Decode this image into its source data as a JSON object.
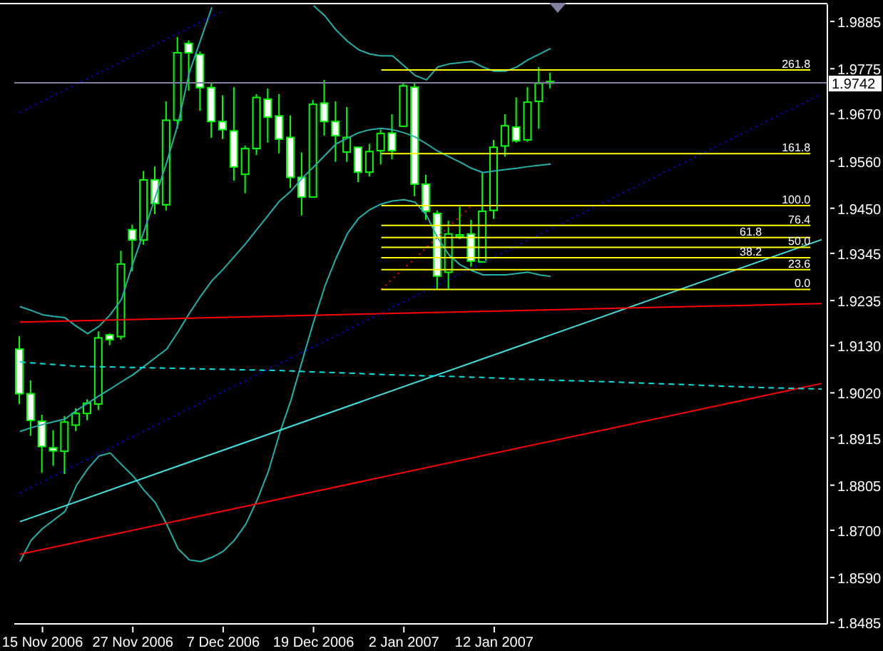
{
  "chart_data": {
    "type": "candlestick",
    "color": "#00ff00",
    "categories": [
      null,
      null,
      "15 Nov 2006",
      null,
      null,
      null,
      null,
      null,
      null,
      null,
      "27 Nov 2006",
      null,
      null,
      null,
      null,
      null,
      null,
      null,
      "7 Dec 2006",
      null,
      null,
      null,
      null,
      null,
      null,
      null,
      "19 Dec 2006",
      null,
      null,
      null,
      null,
      null,
      null,
      null,
      "2 Jan 2007",
      null,
      null,
      null,
      null,
      null,
      null,
      null,
      "12 Jan 2007",
      null,
      null,
      null,
      null,
      null,
      null,
      null,
      null,
      null,
      null,
      null,
      null,
      null,
      null,
      null,
      null,
      null,
      null,
      null,
      null,
      null,
      null,
      null,
      null,
      null,
      null,
      null,
      null,
      null
    ],
    "ohlc": [
      [
        1.9122,
        1.9152,
        1.8994,
        1.9018
      ],
      [
        1.9018,
        1.9049,
        1.892,
        1.8956
      ],
      [
        1.8954,
        1.8969,
        1.8834,
        1.8895
      ],
      [
        1.8892,
        1.8933,
        1.885,
        1.8885
      ],
      [
        1.8884,
        1.8966,
        1.8831,
        1.8952
      ],
      [
        1.8945,
        1.8984,
        1.8931,
        1.8972
      ],
      [
        1.8972,
        1.9005,
        1.8956,
        1.8996
      ],
      [
        1.8994,
        1.9163,
        1.898,
        1.9148
      ],
      [
        1.9155,
        1.9159,
        1.9131,
        1.9144
      ],
      [
        1.9151,
        1.9351,
        1.9144,
        1.932
      ],
      [
        1.94,
        1.9412,
        1.9303,
        1.9376
      ],
      [
        1.9376,
        1.9537,
        1.9365,
        1.9516
      ],
      [
        1.9516,
        1.9547,
        1.9436,
        1.9461
      ],
      [
        1.9458,
        1.9699,
        1.9445,
        1.9655
      ],
      [
        1.9655,
        1.9849,
        1.9635,
        1.9812
      ],
      [
        1.9834,
        1.9841,
        1.9724,
        1.9812
      ],
      [
        1.9808,
        1.9815,
        1.9677,
        1.9731
      ],
      [
        1.9731,
        1.9743,
        1.9614,
        1.9652
      ],
      [
        1.9652,
        1.9713,
        1.9611,
        1.9633
      ],
      [
        1.963,
        1.9732,
        1.9514,
        1.9546
      ],
      [
        1.9529,
        1.9596,
        1.9485,
        1.9589
      ],
      [
        1.9589,
        1.9716,
        1.9574,
        1.9708
      ],
      [
        1.9704,
        1.9729,
        1.9603,
        1.9662
      ],
      [
        1.9665,
        1.9716,
        1.9578,
        1.9611
      ],
      [
        1.9615,
        1.9666,
        1.9497,
        1.9522
      ],
      [
        1.9522,
        1.958,
        1.9433,
        1.9476
      ],
      [
        1.9476,
        1.9702,
        1.9476,
        1.9692
      ],
      [
        1.9695,
        1.9749,
        1.9619,
        1.9652
      ],
      [
        1.9652,
        1.9699,
        1.9558,
        1.9619
      ],
      [
        1.9581,
        1.9686,
        1.9558,
        1.9615
      ],
      [
        1.9592,
        1.9594,
        1.9511,
        1.9534
      ],
      [
        1.9534,
        1.96,
        1.9524,
        1.9582
      ],
      [
        1.9584,
        1.9633,
        1.9552,
        1.9624
      ],
      [
        1.9625,
        1.9669,
        1.9564,
        1.9584
      ],
      [
        1.9641,
        1.9743,
        1.9641,
        1.9735
      ],
      [
        1.9732,
        1.9743,
        1.9478,
        1.9506
      ],
      [
        1.9506,
        1.9528,
        1.9423,
        1.9443
      ],
      [
        1.9438,
        1.9445,
        1.9262,
        1.9292
      ],
      [
        1.9301,
        1.9421,
        1.9262,
        1.939
      ],
      [
        1.9384,
        1.9454,
        1.9378,
        1.9388
      ],
      [
        1.939,
        1.9423,
        1.9314,
        1.9327
      ],
      [
        1.9325,
        1.9533,
        1.9323,
        1.9443
      ],
      [
        1.9445,
        1.9609,
        1.9425,
        1.9592
      ],
      [
        1.9595,
        1.9669,
        1.957,
        1.9642
      ],
      [
        1.9639,
        1.9708,
        1.9603,
        1.9607
      ],
      [
        1.9609,
        1.9732,
        1.9605,
        1.9697
      ],
      [
        1.9699,
        1.9779,
        1.9635,
        1.9741
      ],
      [
        1.9745,
        1.9766,
        1.9729,
        1.9742
      ],
      null,
      null,
      null,
      null,
      null,
      null,
      null,
      null,
      null,
      null,
      null,
      null,
      null,
      null,
      null,
      null,
      null,
      null,
      null,
      null,
      null,
      null,
      null,
      null
    ],
    "colors": [
      "#ffffff",
      "#ffffff",
      "#ffffff",
      "#ffffff",
      "#000000",
      "#000000",
      "#000000",
      "#000000",
      "#ffffff",
      "#000000",
      "#ffffff",
      "#000000",
      "#ffffff",
      "#000000",
      "#000000",
      "#ffffff",
      "#ffffff",
      "#ffffff",
      "#ffffff",
      "#ffffff",
      "#000000",
      "#000000",
      "#ffffff",
      "#ffffff",
      "#ffffff",
      "#ffffff",
      "#000000",
      "#ffffff",
      "#ffffff",
      "#000000",
      "#ffffff",
      "#000000",
      "#000000",
      "#ffffff",
      "#000000",
      "#ffffff",
      "#ffffff",
      "#ffffff",
      "#000000",
      "#000000",
      "#ffffff",
      "#000000",
      "#000000",
      "#000000",
      "#ffffff",
      "#000000",
      "#000000",
      "#ffffff",
      null,
      null,
      null,
      null,
      null,
      null,
      null,
      null,
      null,
      null,
      null,
      null,
      null,
      null,
      null,
      null,
      null,
      null,
      null,
      null,
      null,
      null,
      null,
      null
    ],
    "series": [
      {
        "type": "line",
        "color": "#20b2aa",
        "values": [
          1.9221,
          1.9212,
          1.9202,
          1.9198,
          1.9195,
          1.9175,
          1.9158,
          1.9175,
          1.9202,
          1.9238,
          1.9321,
          1.9397,
          1.9477,
          1.9557,
          1.9646,
          1.9766,
          1.9842,
          1.9918,
          null,
          null,
          null,
          null,
          null,
          null,
          null,
          null,
          1.9922,
          1.9898,
          1.9865,
          1.9839,
          1.9819,
          1.9809,
          1.9805,
          1.9805,
          1.9782,
          1.9759,
          1.9749,
          1.9779,
          1.9786,
          1.9789,
          1.9792,
          1.9779,
          1.9769,
          1.9769,
          1.9779,
          1.9796,
          1.9809,
          1.9822,
          null,
          null,
          null,
          null,
          null,
          null,
          null,
          null,
          null,
          null,
          null,
          null,
          null,
          null,
          null,
          null,
          null,
          null,
          null,
          null,
          null,
          null,
          null,
          null
        ]
      },
      {
        "type": "line",
        "color": "#20b2aa",
        "values": [
          1.893,
          1.8939,
          1.8946,
          1.8953,
          1.8959,
          1.8979,
          1.8996,
          1.9013,
          1.9029,
          1.9046,
          1.9062,
          1.9082,
          1.9102,
          1.9122,
          1.9162,
          1.9205,
          1.9245,
          1.9281,
          1.9308,
          1.9338,
          1.9368,
          1.9401,
          1.9434,
          1.9467,
          1.949,
          1.952,
          1.9546,
          1.9573,
          1.96,
          1.9613,
          1.9626,
          1.9633,
          1.9636,
          1.9633,
          1.9626,
          1.9616,
          1.96,
          1.9583,
          1.957,
          1.9557,
          1.9543,
          1.9533,
          1.9537,
          1.954,
          1.9543,
          1.9547,
          1.955,
          1.9553,
          null,
          null,
          null,
          null,
          null,
          null,
          null,
          null,
          null,
          null,
          null,
          null,
          null,
          null,
          null,
          null,
          null,
          null,
          null,
          null,
          null,
          null,
          null,
          null
        ]
      },
      {
        "type": "line",
        "color": "#20b2aa",
        "values": [
          1.8627,
          1.8677,
          1.8704,
          1.8724,
          1.8744,
          1.8804,
          1.8843,
          1.8873,
          1.888,
          1.8853,
          1.8827,
          1.8793,
          1.8764,
          1.8714,
          1.8657,
          1.8631,
          1.8627,
          1.8637,
          1.8651,
          1.8677,
          1.8714,
          1.877,
          1.8837,
          1.8926,
          1.9003,
          1.9095,
          1.9185,
          1.9268,
          1.9334,
          1.9391,
          1.9427,
          1.9447,
          1.946,
          1.9467,
          1.947,
          1.9464,
          1.9434,
          1.9381,
          1.9341,
          1.9318,
          1.9305,
          1.9295,
          1.9295,
          1.9295,
          1.9298,
          1.9301,
          1.9295,
          1.9291,
          null,
          null,
          null,
          null,
          null,
          null,
          null,
          null,
          null,
          null,
          null,
          null,
          null,
          null,
          null,
          null,
          null,
          null,
          null,
          null,
          null,
          null,
          null,
          null
        ]
      },
      {
        "type": "line",
        "color": "#40e0e0",
        "values": [
          1.872,
          null,
          null,
          null,
          null,
          null,
          null,
          null,
          null,
          null,
          null,
          null,
          null,
          null,
          null,
          null,
          null,
          null,
          null,
          null,
          null,
          null,
          null,
          null,
          null,
          null,
          null,
          null,
          null,
          null,
          null,
          null,
          null,
          null,
          null,
          null,
          null,
          null,
          null,
          null,
          null,
          null,
          null,
          null,
          null,
          null,
          null,
          null,
          null,
          null,
          null,
          null,
          null,
          null,
          null,
          null,
          null,
          null,
          null,
          null,
          null,
          null,
          null,
          null,
          null,
          null,
          null,
          null,
          null,
          null,
          null,
          1.9377
        ]
      },
      {
        "type": "line",
        "color": "#ff0000",
        "values": [
          1.8644,
          null,
          null,
          null,
          null,
          null,
          null,
          null,
          null,
          null,
          null,
          null,
          null,
          null,
          null,
          null,
          null,
          null,
          null,
          null,
          null,
          null,
          null,
          null,
          null,
          null,
          null,
          null,
          null,
          null,
          null,
          null,
          null,
          null,
          null,
          null,
          null,
          null,
          null,
          null,
          null,
          null,
          null,
          null,
          null,
          null,
          null,
          null,
          null,
          null,
          null,
          null,
          null,
          null,
          null,
          null,
          null,
          null,
          null,
          null,
          null,
          null,
          null,
          null,
          null,
          null,
          null,
          null,
          null,
          null,
          null,
          1.9042
        ]
      },
      {
        "type": "line",
        "color": "#ff0000",
        "values": [
          1.9185,
          null,
          null,
          null,
          null,
          null,
          null,
          null,
          null,
          null,
          null,
          null,
          null,
          null,
          null,
          null,
          null,
          null,
          null,
          null,
          null,
          null,
          null,
          null,
          null,
          null,
          null,
          null,
          null,
          null,
          null,
          null,
          null,
          null,
          null,
          null,
          null,
          null,
          null,
          null,
          null,
          null,
          null,
          null,
          null,
          null,
          null,
          null,
          null,
          null,
          null,
          null,
          null,
          null,
          null,
          null,
          null,
          null,
          null,
          null,
          null,
          null,
          null,
          null,
          null,
          null,
          null,
          null,
          null,
          null,
          null,
          1.9228
        ]
      },
      {
        "type": "line",
        "color": "#00e0e0",
        "line_style": "dashed",
        "values": [
          1.9092,
          null,
          null,
          null,
          null,
          1.9082,
          null,
          null,
          null,
          null,
          null,
          null,
          null,
          null,
          null,
          null,
          null,
          null,
          null,
          null,
          null,
          null,
          null,
          1.9072,
          null,
          null,
          null,
          null,
          null,
          null,
          null,
          null,
          null,
          1.9062,
          null,
          null,
          null,
          null,
          null,
          null,
          null,
          1.9056,
          null,
          null,
          1.9052,
          null,
          null,
          null,
          null,
          null,
          null,
          null,
          1.9046,
          null,
          null,
          null,
          null,
          null,
          null,
          1.9039,
          null,
          null,
          null,
          null,
          null,
          null,
          1.9032,
          null,
          null,
          null,
          null,
          1.9029
        ]
      },
      {
        "type": "line",
        "color": "#0000ff",
        "line_style": "dotted",
        "values": [
          1.9673,
          null,
          null,
          null,
          null,
          null,
          null,
          null,
          null,
          null,
          null,
          null,
          null,
          null,
          null,
          null,
          null,
          null,
          1.991,
          null,
          null,
          null,
          null,
          null,
          null,
          null,
          null,
          null,
          null,
          null,
          null,
          null,
          null,
          null,
          null,
          null,
          null,
          null,
          null,
          null,
          null,
          null,
          null,
          null,
          null,
          null,
          null,
          null,
          null,
          null,
          null,
          null,
          null,
          null,
          null,
          null,
          null,
          null,
          null,
          null,
          null,
          null,
          null,
          null,
          null,
          null,
          null,
          null,
          null,
          null,
          null,
          null
        ]
      },
      {
        "type": "line",
        "color": "#0000ff",
        "line_style": "dotted",
        "values": [
          1.8787,
          null,
          null,
          null,
          null,
          null,
          null,
          null,
          null,
          null,
          null,
          null,
          null,
          null,
          null,
          null,
          null,
          null,
          null,
          null,
          null,
          null,
          null,
          null,
          null,
          null,
          null,
          null,
          null,
          null,
          null,
          null,
          null,
          null,
          null,
          null,
          null,
          null,
          null,
          null,
          null,
          null,
          null,
          null,
          null,
          null,
          null,
          null,
          null,
          null,
          null,
          null,
          null,
          null,
          null,
          null,
          null,
          null,
          null,
          null,
          null,
          null,
          null,
          null,
          null,
          null,
          null,
          null,
          null,
          null,
          null,
          1.9716
        ]
      },
      {
        "type": "line",
        "color": "#ff0000",
        "line_style": "dotted",
        "values": [
          null,
          null,
          null,
          null,
          null,
          null,
          null,
          null,
          null,
          null,
          null,
          null,
          null,
          null,
          null,
          null,
          null,
          null,
          null,
          null,
          null,
          null,
          null,
          null,
          null,
          null,
          null,
          null,
          null,
          null,
          null,
          null,
          1.9261,
          null,
          null,
          null,
          null,
          null,
          null,
          null,
          1.9456,
          null,
          null,
          null,
          null,
          null,
          null,
          null,
          null,
          null,
          null,
          null,
          null,
          null,
          null,
          null,
          null,
          null,
          null,
          null,
          null,
          null,
          null,
          null,
          null,
          null,
          null,
          null,
          null,
          null,
          null,
          null
        ]
      }
    ],
    "ref_lines": [
      {
        "axis": "y",
        "value": 1.9772,
        "color": "#ffff00"
      },
      {
        "axis": "y",
        "value": 1.9577,
        "color": "#ffff00"
      },
      {
        "axis": "y",
        "value": 1.9456,
        "color": "#ffff00"
      },
      {
        "axis": "y",
        "value": 1.941,
        "color": "#ffff00"
      },
      {
        "axis": "y",
        "value": 1.9382,
        "color": "#ffff00"
      },
      {
        "axis": "y",
        "value": 1.9359,
        "color": "#ffff00"
      },
      {
        "axis": "y",
        "value": 1.9335,
        "color": "#ffff00"
      },
      {
        "axis": "y",
        "value": 1.9307,
        "color": "#ffff00"
      },
      {
        "axis": "y",
        "value": 1.9261,
        "color": "#ffff00"
      },
      {
        "axis": "y",
        "value": 1.9742,
        "label": "1.9742",
        "color": "#8080a0"
      }
    ],
    "annotations": [
      {
        "text": "261.8",
        "y": 1.9772
      },
      {
        "text": "161.8",
        "y": 1.9577
      },
      {
        "text": "100.0",
        "y": 1.9456
      },
      {
        "text": "76.4",
        "y": 1.941
      },
      {
        "text": "61.8",
        "y": 1.9382
      },
      {
        "text": "50.0",
        "y": 1.9359
      },
      {
        "text": "38.2",
        "y": 1.9335
      },
      {
        "text": "23.6",
        "y": 1.9307
      },
      {
        "text": "0.0",
        "y": 1.9261
      }
    ],
    "ylim": [
      1.8482,
      1.9925
    ],
    "yticks": [
      1.9885,
      1.9775,
      {
        "value": 1.967,
        "label": "1.9670"
      },
      {
        "value": 1.956,
        "label": "1.9560"
      },
      {
        "value": 1.945,
        "label": "1.9450"
      },
      1.9345,
      1.9235,
      {
        "value": 1.913,
        "label": "1.9130"
      },
      {
        "value": 1.902,
        "label": "1.9020"
      },
      1.8915,
      1.8805,
      {
        "value": 1.87,
        "label": "1.8700"
      },
      {
        "value": 1.859,
        "label": "1.8590"
      },
      1.8485
    ]
  }
}
